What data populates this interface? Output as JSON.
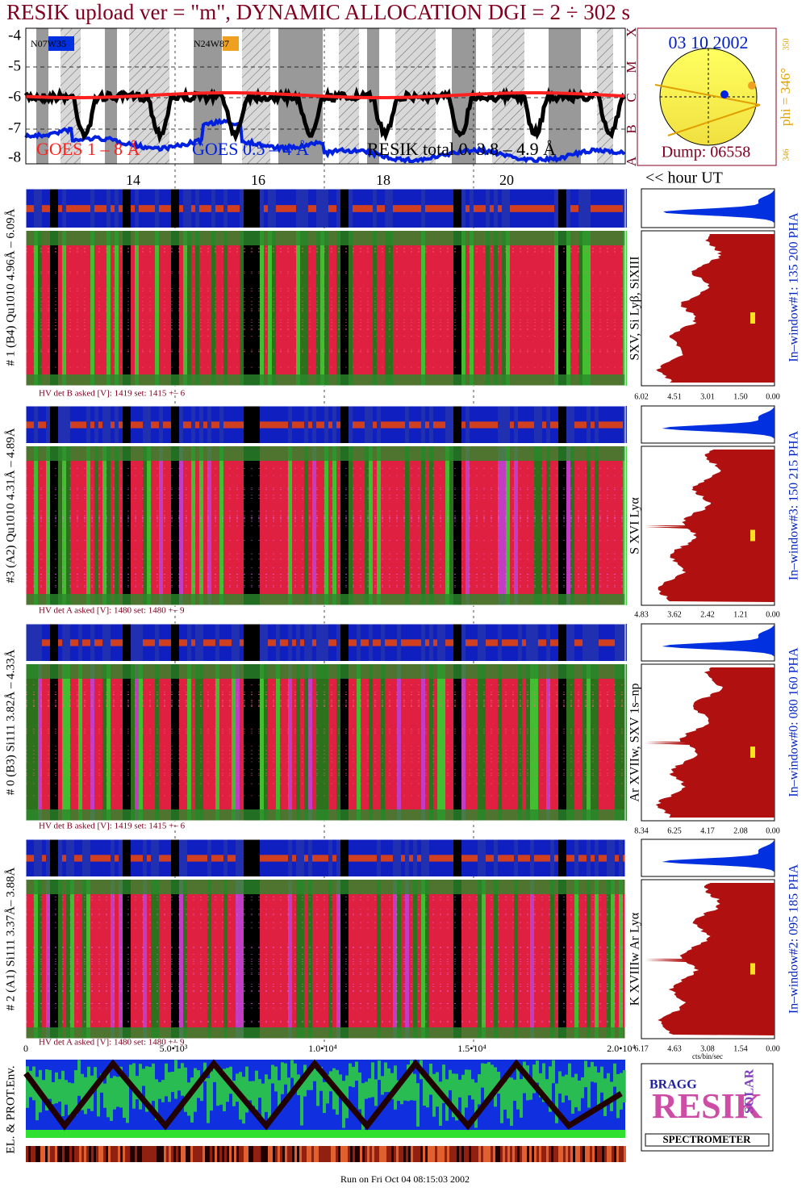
{
  "header": {
    "title": "RESIK upload ver = \"m\", DYNAMIC ALLOCATION  DGI =   2 ÷ 302 s"
  },
  "goes_plot": {
    "yticks": [
      -4,
      -5,
      -6,
      -7,
      -8
    ],
    "class_labels": [
      "X",
      "M",
      "C",
      "B",
      "A"
    ],
    "annotations": [
      "N07W35",
      "N24W87"
    ],
    "legend": [
      "GOES 1 – 8 Å",
      "GOES 0.5 – 4 Å",
      "RESIK total 0. 3.8 – 4.9 Å"
    ],
    "hour_ticks": [
      14,
      16,
      18,
      20
    ],
    "hour_label": "<< hour UT"
  },
  "sun": {
    "date": "03 10 2002",
    "phi": "phi = 346°",
    "tick_top": 350,
    "tick_bottom": 346,
    "dump": "Dump: 06558"
  },
  "panels": [
    {
      "label": "# 1 (B4) Qu1010 4.96Å – 6.09Å",
      "line": "SXV, Si Lyβ, SiXIII",
      "window": "In–window#1:  135 200 PHA",
      "hv": "HV det B asked [V]:  1419 set:  1415 +–    6",
      "xticks": [
        "6.02",
        "4.51",
        "3.01",
        "1.50",
        "0.00"
      ]
    },
    {
      "label": "#3 (A2) Qu1010  4.31Å – 4.89Å",
      "line": "S XVI Lyα",
      "window": "In–window#3:  150 215 PHA",
      "hv": "HV det A asked [V]:  1480 set:  1480 +–    9",
      "xticks": [
        "4.83",
        "3.62",
        "2.42",
        "1.21",
        "0.00"
      ]
    },
    {
      "label": "# 0 (B3) Si111  3.82Å – 4.33Å",
      "line": "Ar XVIIw,  SXV 1s–np",
      "window": "In–window#0:  080 160 PHA",
      "hv": "HV det B asked [V]:  1419 set:  1415 +–    6",
      "xticks": [
        "8.34",
        "6.25",
        "4.17",
        "2.08",
        "0.00"
      ]
    },
    {
      "label": "# 2 (A1) Si111  3.37Å– 3.88Å",
      "line": "K XVIIIw  Ar Lyα",
      "window": "In–window#2:  095 185 PHA",
      "hv": "HV det A asked [V]:  1480 set:  1480 +–    9",
      "xticks": [
        "6.17",
        "4.63",
        "3.08",
        "1.54",
        "0.00"
      ]
    }
  ],
  "bottom_axis": {
    "ticks": [
      "0",
      "5.0•10³",
      "1.0•10⁴",
      "1.5•10⁴",
      "2.0•10⁴"
    ],
    "unit": "cts/bin/sec"
  },
  "env_label": "EL. & PROT.Env.",
  "logo": {
    "bragg": "BRAGG",
    "resik": "RESIK",
    "solar": "SOLAR",
    "spectrometer": "SPECTROMETER"
  },
  "footer": "Run on Fri Oct 04 08:15:03 2002"
}
